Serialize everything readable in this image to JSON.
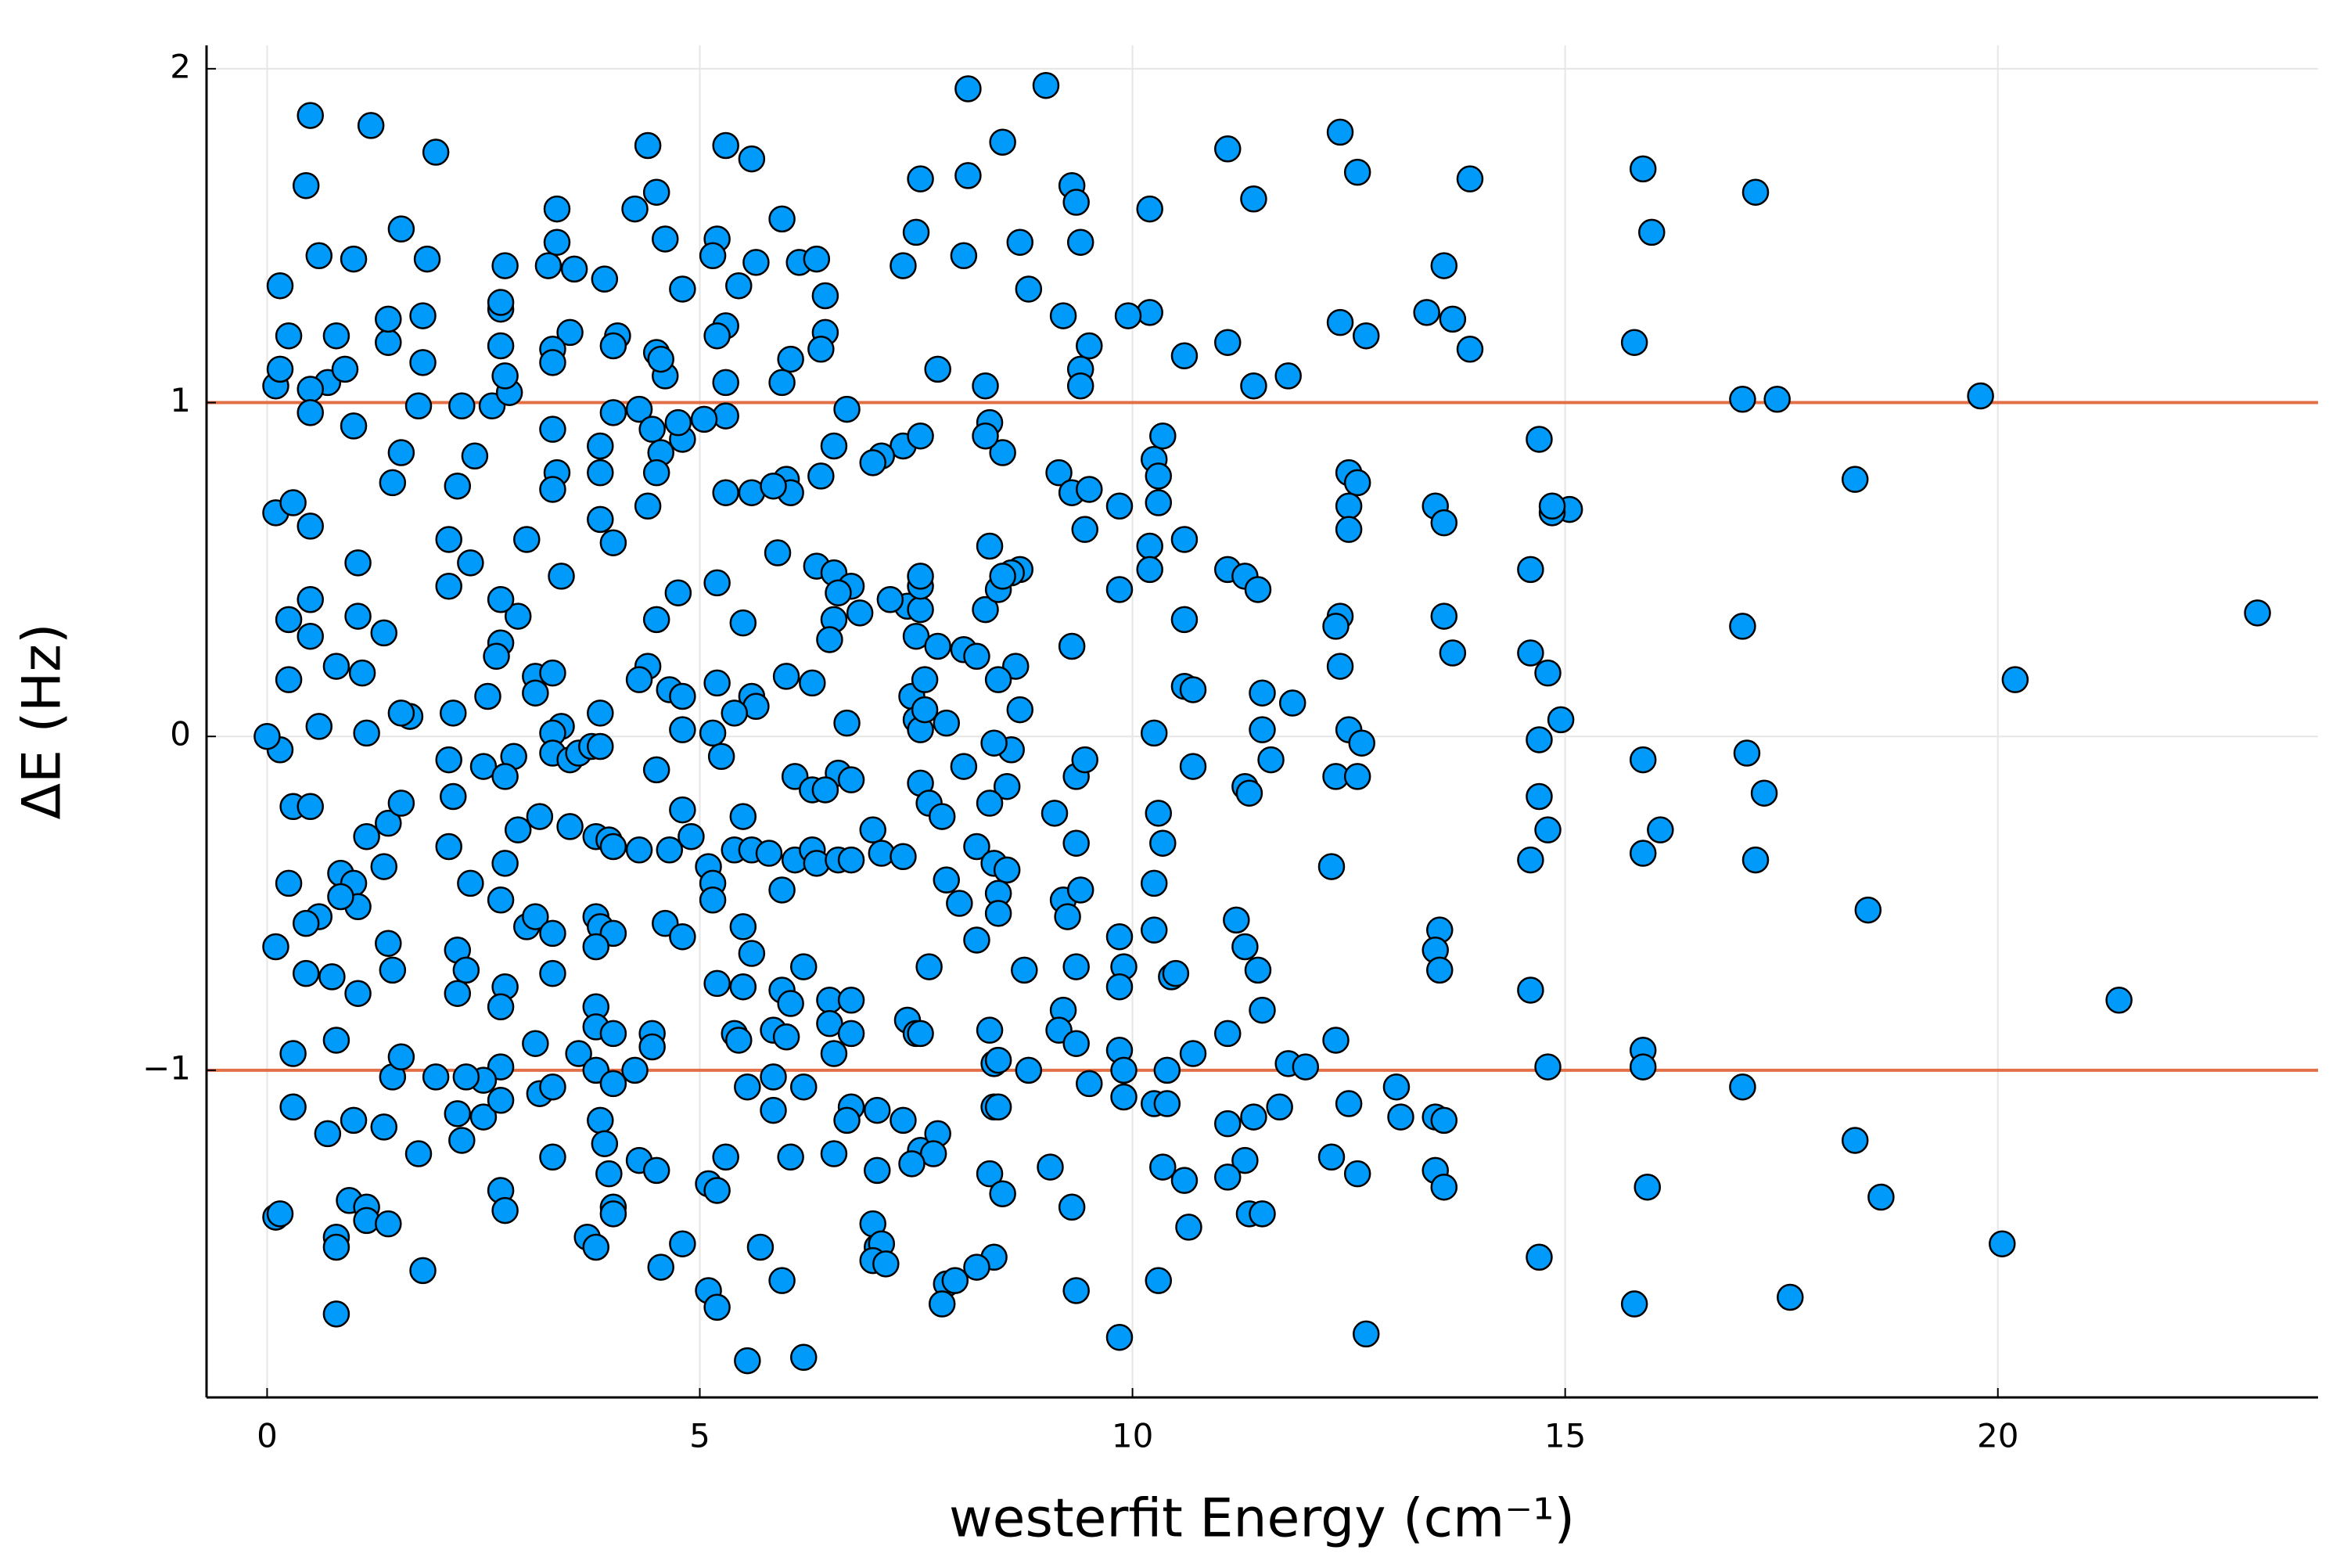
{
  "chart_data": {
    "type": "scatter",
    "x_label": "westerfit Energy (cm⁻¹)",
    "y_label": "ΔE (Hz)",
    "xlim": [
      -0.7,
      23.7
    ],
    "ylim": [
      -1.98,
      2.07
    ],
    "xticks": [
      0,
      5,
      10,
      15,
      20
    ],
    "yticks": [
      {
        "value": -1,
        "label": "−1"
      },
      0,
      1,
      2
    ],
    "grid": true,
    "hlines": [
      1,
      -1
    ],
    "hline_color": "#e26f46",
    "x": [
      23.0,
      21.4,
      20.2,
      20.05,
      19.8,
      18.5,
      18.65,
      18.35,
      18.35,
      17.6,
      17.45,
      17.2,
      17.2,
      17.3,
      17.05,
      17.05,
      17.1,
      17.05,
      16.1,
      16.0,
      15.9,
      15.8,
      15.9,
      15.9,
      15.9,
      15.9,
      15.95,
      15.8,
      15.05,
      14.85,
      14.85,
      14.7,
      14.6,
      14.6,
      14.8,
      14.95,
      14.7,
      14.7,
      14.8,
      14.6,
      14.6,
      14.8,
      14.7,
      13.9,
      13.9,
      13.7,
      13.4,
      13.6,
      13.5,
      13.6,
      13.6,
      13.7,
      13.55,
      13.5,
      13.55,
      13.05,
      13.1,
      13.5,
      13.6,
      13.5,
      13.6,
      12.4,
      12.6,
      12.7,
      12.4,
      12.5,
      12.6,
      12.5,
      12.5,
      12.4,
      12.35,
      12.4,
      12.5,
      12.65,
      12.35,
      12.6,
      12.3,
      12.35,
      12.5,
      12.3,
      12.6,
      12.7,
      11.1,
      11.4,
      11.8,
      11.4,
      11.1,
      11.1,
      11.3,
      11.45,
      11.5,
      11.5,
      11.6,
      11.3,
      11.35,
      11.85,
      11.2,
      11.3,
      11.45,
      11.5,
      11.1,
      11.8,
      12.0,
      11.4,
      11.1,
      11.7,
      11.3,
      11.1,
      11.35,
      11.5,
      10.2,
      10.2,
      9.95,
      10.6,
      10.35,
      10.25,
      10.3,
      10.3,
      10.2,
      10.6,
      10.2,
      10.6,
      10.6,
      10.7,
      10.25,
      10.7,
      10.3,
      10.35,
      10.25,
      10.25,
      10.45,
      10.5,
      10.7,
      10.4,
      10.25,
      10.4,
      10.35,
      10.6,
      10.65,
      10.3,
      9.0,
      8.1,
      8.5,
      8.1,
      9.3,
      9.35,
      8.7,
      9.4,
      8.8,
      9.2,
      9.5,
      9.4,
      9.4,
      8.3,
      8.35,
      8.5,
      9.15,
      9.3,
      9.5,
      9.45,
      9.85,
      8.7,
      8.6,
      9.85,
      9.3,
      8.7,
      9.35,
      9.45,
      9.1,
      9.35,
      9.2,
      9.4,
      9.25,
      9.85,
      9.9,
      9.35,
      9.2,
      9.85,
      9.15,
      9.35,
      9.85,
      9.9,
      9.5,
      9.9,
      9.05,
      9.3,
      9.35,
      9.85,
      0.5,
      1.2,
      1.95,
      0.45,
      1.55,
      0.6,
      1.0,
      1.85,
      0.15,
      0.25,
      0.7,
      0.1,
      0.15,
      0.5,
      0.5,
      1.0,
      0.9,
      1.4,
      1.4,
      1.8,
      1.8,
      0.8,
      0.1,
      0.3,
      0.5,
      1.45,
      1.55,
      1.75,
      1.05,
      0.5,
      0.25,
      0.5,
      1.05,
      1.35,
      0.8,
      1.1,
      0.25,
      0.6,
      1.15,
      0.15,
      1.65,
      1.55,
      0.3,
      0.5,
      1.15,
      1.4,
      1.55,
      0.25,
      0.85,
      1.0,
      1.05,
      0.6,
      0.45,
      0.85,
      1.35,
      1.4,
      1.45,
      0.45,
      0.75,
      1.05,
      0.8,
      0.3,
      0.3,
      1.0,
      0.7,
      1.45,
      1.55,
      1.35,
      0.1,
      0.15,
      0.8,
      0.8,
      0.95,
      1.15,
      1.15,
      1.4,
      0.8,
      1.8,
      1.75,
      0,
      0.1,
      2.25,
      2.6,
      2.2,
      2.4,
      2.1,
      2.35,
      2.1,
      2.8,
      2.75,
      2.7,
      2.7,
      2.7,
      2.75,
      3.0,
      2.9,
      2.7,
      2.7,
      2.65,
      2.55,
      2.15,
      2.1,
      2.15,
      2.5,
      2.85,
      2.75,
      2.9,
      2.1,
      2.75,
      2.7,
      2.35,
      3.0,
      2.2,
      2.3,
      2.2,
      2.75,
      2.7,
      2.7,
      2.5,
      2.3,
      2.2,
      2.5,
      2.7,
      2.25,
      2.7,
      2.75,
      1.95,
      3.35,
      3.35,
      3.55,
      3.25,
      3.5,
      3.3,
      3.3,
      3.9,
      4.05,
      4.0,
      4.0,
      3.85,
      3.85,
      3.3,
      3.35,
      3.3,
      3.85,
      4.0,
      3.4,
      3.1,
      3.3,
      3.1,
      3.4,
      3.3,
      3.3,
      3.5,
      3.6,
      3.75,
      3.85,
      3.85,
      3.5,
      3.8,
      3.95,
      4.0,
      3.15,
      3.1,
      3.3,
      3.8,
      3.85,
      4.0,
      3.8,
      3.3,
      3.8,
      3.8,
      4.0,
      3.1,
      3.15,
      3.3,
      3.6,
      3.8,
      4.0,
      3.85,
      3.9,
      3.95,
      3.3,
      3.7,
      3.8,
      4.0,
      4.0,
      4.4,
      4.5,
      4.25,
      4.6,
      4.8,
      4.5,
      4.6,
      4.55,
      4.3,
      4.45,
      4.55,
      4.8,
      4.75,
      4.5,
      4.4,
      4.75,
      4.5,
      4.4,
      4.3,
      4.65,
      4.8,
      4.8,
      4.5,
      4.8,
      4.9,
      4.3,
      4.65,
      4.6,
      4.8,
      4.45,
      4.45,
      4.25,
      4.3,
      4.5,
      4.8,
      4.55,
      5.3,
      5.6,
      5.2,
      5.15,
      5.45,
      5.65,
      5.3,
      5.2,
      5.3,
      5.3,
      5.05,
      5.3,
      5.6,
      5.2,
      5.5,
      5.2,
      5.6,
      5.65,
      5.4,
      5.15,
      5.25,
      5.5,
      5.4,
      5.6,
      5.1,
      5.15,
      5.15,
      5.5,
      5.6,
      5.2,
      5.5,
      5.4,
      5.45,
      5.55,
      5.3,
      5.1,
      5.2,
      5.1,
      5.2,
      5.7,
      5.55,
      5.95,
      6.05,
      5.95,
      6.15,
      6.35,
      6.45,
      6.45,
      6.4,
      6.7,
      6.55,
      6.0,
      6.05,
      5.85,
      6.4,
      5.9,
      6.35,
      6.55,
      6.55,
      6.5,
      6.0,
      6.3,
      6.7,
      6.6,
      6.75,
      6.1,
      6.3,
      6.45,
      5.8,
      6.1,
      6.3,
      6.35,
      5.95,
      6.6,
      6.75,
      6.2,
      5.95,
      6.05,
      6.5,
      6.75,
      6.5,
      6.75,
      5.85,
      6.0,
      6.55,
      5.85,
      6.2,
      6.75,
      6.7,
      5.85,
      6.05,
      6.55,
      5.95,
      6.2,
      7.55,
      7.5,
      7.35,
      7.75,
      7.35,
      7.1,
      7.55,
      7.0,
      6.85,
      6.75,
      6.6,
      7.4,
      7.55,
      7.5,
      7.55,
      7.55,
      7.2,
      7.75,
      7.45,
      7.5,
      7.55,
      7.6,
      7.6,
      7.85,
      7.55,
      7.65,
      7.8,
      7.0,
      7.1,
      7.35,
      7.85,
      7.65,
      7.4,
      7.5,
      7.55,
      7.35,
      7.05,
      7.55,
      7.75,
      7.7,
      7.45,
      7.05,
      7.0,
      7.05,
      7.1,
      7.0,
      7.15,
      7.85,
      7.8,
      8.05,
      8.05,
      8.2,
      8.3,
      8.45,
      8.35,
      8.3,
      8.5,
      8.65,
      8.45,
      8.6,
      8.4,
      8.05,
      8.55,
      8.35,
      8.2,
      8.4,
      8.55,
      8.45,
      8.45,
      8.0,
      8.2,
      8.75,
      8.35,
      8.4,
      8.45,
      8.8,
      8.4,
      8.45,
      8.35,
      8.5,
      8.4,
      8.2,
      7.95
    ],
    "series": [
      {
        "color": "#009afa",
        "values": [
          0.37,
          -0.79,
          0.17,
          -1.52,
          1.02,
          -0.52,
          -1.38,
          0.77,
          -1.21,
          -1.68,
          1.01,
          1.63,
          -0.37,
          -0.17,
          1.01,
          0.33,
          -0.05,
          -1.05,
          -0.28,
          1.51,
          1.7,
          1.18,
          -0.07,
          -0.35,
          -0.94,
          -0.99,
          -1.35,
          -1.7,
          0.68,
          0.67,
          0.69,
          0.89,
          0.5,
          0.25,
          0.19,
          0.05,
          -0.01,
          -0.18,
          -0.28,
          -0.37,
          -0.76,
          -0.99,
          -1.56,
          1.67,
          1.16,
          1.25,
          1.27,
          1.41,
          0.69,
          0.64,
          0.36,
          0.25,
          -0.58,
          -0.64,
          -0.7,
          -1.05,
          -1.14,
          -1.14,
          -1.15,
          -1.3,
          -1.35,
          1.81,
          1.69,
          1.2,
          1.24,
          0.79,
          0.76,
          0.69,
          0.62,
          0.36,
          0.33,
          0.21,
          0.02,
          -0.02,
          -0.12,
          -0.12,
          -0.39,
          -0.91,
          -1.1,
          -1.26,
          -1.31,
          -1.79,
          1.76,
          1.61,
          1.08,
          1.05,
          1.18,
          0.5,
          0.48,
          0.44,
          0.13,
          0.02,
          -0.07,
          -0.15,
          -0.17,
          0.1,
          -0.55,
          -0.63,
          -0.7,
          -0.82,
          -0.89,
          -0.98,
          -0.99,
          -1.14,
          -1.16,
          -1.11,
          -1.27,
          -1.32,
          -1.43,
          -1.43,
          1.58,
          1.27,
          1.26,
          1.14,
          0.9,
          0.83,
          0.78,
          0.7,
          0.57,
          0.59,
          0.5,
          0.35,
          0.15,
          0.14,
          0.01,
          -0.09,
          -0.23,
          -0.32,
          -0.44,
          -0.58,
          -0.72,
          -0.71,
          -0.95,
          -1.0,
          -1.1,
          -1.1,
          -1.29,
          -1.33,
          -1.47,
          -1.63,
          1.95,
          1.94,
          1.78,
          1.68,
          1.65,
          1.6,
          1.48,
          1.48,
          1.34,
          1.26,
          1.17,
          1.1,
          1.05,
          1.05,
          0.94,
          0.85,
          0.79,
          0.73,
          0.74,
          0.62,
          0.69,
          0.5,
          0.49,
          0.44,
          0.27,
          0.08,
          -0.12,
          -0.07,
          -0.23,
          -0.32,
          -0.49,
          -0.46,
          -0.54,
          -0.6,
          -0.69,
          -0.69,
          -0.82,
          -0.75,
          -0.88,
          -0.92,
          -0.94,
          -1.0,
          -1.04,
          -1.08,
          -1.29,
          -1.41,
          -1.66,
          -1.8,
          1.86,
          1.83,
          1.75,
          1.65,
          1.52,
          1.44,
          1.43,
          1.43,
          1.35,
          1.2,
          1.06,
          1.05,
          1.1,
          1.04,
          0.97,
          0.93,
          1.1,
          1.18,
          1.25,
          1.26,
          1.12,
          1.2,
          0.67,
          0.7,
          0.63,
          0.76,
          0.85,
          0.99,
          0.52,
          0.41,
          0.35,
          0.3,
          0.36,
          0.31,
          0.21,
          0.19,
          0.17,
          0.03,
          0.01,
          -0.04,
          0.06,
          0.07,
          -0.21,
          -0.21,
          -0.3,
          -0.26,
          -0.2,
          -0.44,
          -0.41,
          -0.44,
          -0.51,
          -0.54,
          -0.56,
          -0.48,
          -0.39,
          -0.62,
          -0.7,
          -0.71,
          -0.72,
          -0.77,
          -0.91,
          -0.95,
          -1.11,
          -1.15,
          -1.19,
          -1.02,
          -0.96,
          -1.17,
          -1.44,
          -1.43,
          -1.5,
          -1.53,
          -1.39,
          -1.41,
          -1.45,
          -1.46,
          -1.73,
          -1.6,
          -1.25,
          0,
          -0.63,
          0.99,
          0.99,
          0.75,
          0.84,
          0.59,
          0.52,
          0.45,
          1.03,
          1.08,
          1.17,
          1.28,
          1.3,
          1.41,
          0.59,
          0.36,
          0.41,
          0.28,
          0.24,
          0.12,
          0.07,
          -0.07,
          -0.18,
          -0.09,
          -0.06,
          -0.12,
          -0.28,
          -0.33,
          -0.38,
          -0.49,
          -0.44,
          -0.57,
          -0.64,
          -0.7,
          -0.77,
          -0.75,
          -0.81,
          -0.99,
          -1.03,
          -1.02,
          -1.13,
          -1.14,
          -1.09,
          -1.21,
          -1.36,
          -1.42,
          -1.02,
          1.58,
          1.48,
          1.4,
          1.41,
          1.21,
          1.16,
          1.12,
          1.37,
          1.2,
          1.17,
          0.97,
          0.87,
          0.79,
          0.92,
          0.79,
          0.74,
          0.65,
          0.58,
          0.48,
          0.18,
          0.19,
          0.13,
          0.03,
          0.01,
          -0.05,
          -0.07,
          -0.05,
          -0.03,
          -0.03,
          0.07,
          -0.27,
          -0.3,
          -0.31,
          -0.33,
          -0.24,
          -0.54,
          -0.59,
          -0.54,
          -0.57,
          -0.59,
          -0.63,
          -0.71,
          -0.81,
          -0.87,
          -0.89,
          -0.92,
          -1.07,
          -1.05,
          -0.95,
          -1.0,
          -1.04,
          -1.15,
          -1.22,
          -1.31,
          -1.26,
          -1.5,
          -1.53,
          -1.41,
          -1.43,
          1.77,
          1.63,
          1.58,
          1.49,
          1.34,
          1.15,
          1.08,
          1.13,
          0.98,
          0.92,
          0.85,
          0.89,
          0.94,
          0.79,
          0.69,
          0.43,
          0.35,
          0.21,
          0.17,
          0.14,
          0.12,
          0.02,
          -0.1,
          -0.22,
          -0.3,
          -0.34,
          -0.34,
          -0.56,
          -0.6,
          -0.89,
          -0.93,
          -1.0,
          -1.27,
          -1.3,
          -1.52,
          -1.59,
          1.77,
          1.73,
          1.49,
          1.44,
          1.35,
          1.42,
          1.23,
          1.2,
          1.06,
          0.96,
          0.95,
          0.73,
          0.73,
          0.46,
          0.34,
          0.16,
          0.12,
          0.09,
          0.07,
          0.01,
          -0.06,
          -0.24,
          -0.34,
          -0.34,
          -0.39,
          -0.44,
          -0.49,
          -0.57,
          -0.65,
          -0.74,
          -0.75,
          -0.89,
          -0.91,
          -1.05,
          -1.26,
          -1.34,
          -1.36,
          -1.66,
          -1.71,
          -1.53,
          -1.87,
          1.55,
          1.13,
          1.06,
          1.42,
          1.43,
          1.32,
          1.21,
          1.16,
          0.98,
          0.87,
          0.77,
          0.73,
          0.75,
          0.78,
          0.55,
          0.51,
          0.49,
          0.35,
          0.29,
          0.18,
          0.16,
          0.04,
          -0.11,
          -0.13,
          -0.12,
          -0.16,
          -0.16,
          -0.35,
          -0.37,
          -0.34,
          -0.38,
          -0.46,
          -0.37,
          -0.37,
          -0.69,
          -0.76,
          -0.8,
          -0.79,
          -0.79,
          -0.86,
          -0.89,
          -0.88,
          -0.9,
          -0.95,
          -1.02,
          -1.05,
          -1.11,
          -1.15,
          -1.12,
          -1.26,
          -1.25,
          -1.63,
          -1.86,
          1.67,
          1.51,
          1.41,
          1.1,
          0.87,
          0.84,
          0.9,
          0.82,
          0.37,
          0.45,
          0.43,
          0.39,
          0.38,
          0.3,
          0.45,
          0.48,
          0.41,
          0.27,
          0.12,
          0.05,
          0.02,
          0.17,
          0.08,
          0.04,
          -0.14,
          -0.2,
          -0.24,
          -0.28,
          -0.35,
          -0.36,
          -0.43,
          -0.69,
          -0.85,
          -0.89,
          -0.89,
          -1.15,
          -1.12,
          -1.24,
          -1.19,
          -1.25,
          -1.28,
          -1.3,
          -1.46,
          -1.53,
          -1.52,
          -1.57,
          -1.58,
          -1.64,
          -1.7,
          1.44,
          0.26,
          0.24,
          0.38,
          0.44,
          0.57,
          0.9,
          0.48,
          0.21,
          0.17,
          -0.04,
          -0.02,
          -0.09,
          -0.15,
          -0.2,
          -0.33,
          -0.38,
          -0.4,
          -0.47,
          -0.53,
          -0.5,
          -0.61,
          -0.7,
          -0.88,
          -0.98,
          -0.97,
          -1.0,
          -1.11,
          -1.11,
          -1.31,
          -1.37,
          -1.56,
          -1.59,
          -1.63
        ]
      }
    ]
  }
}
